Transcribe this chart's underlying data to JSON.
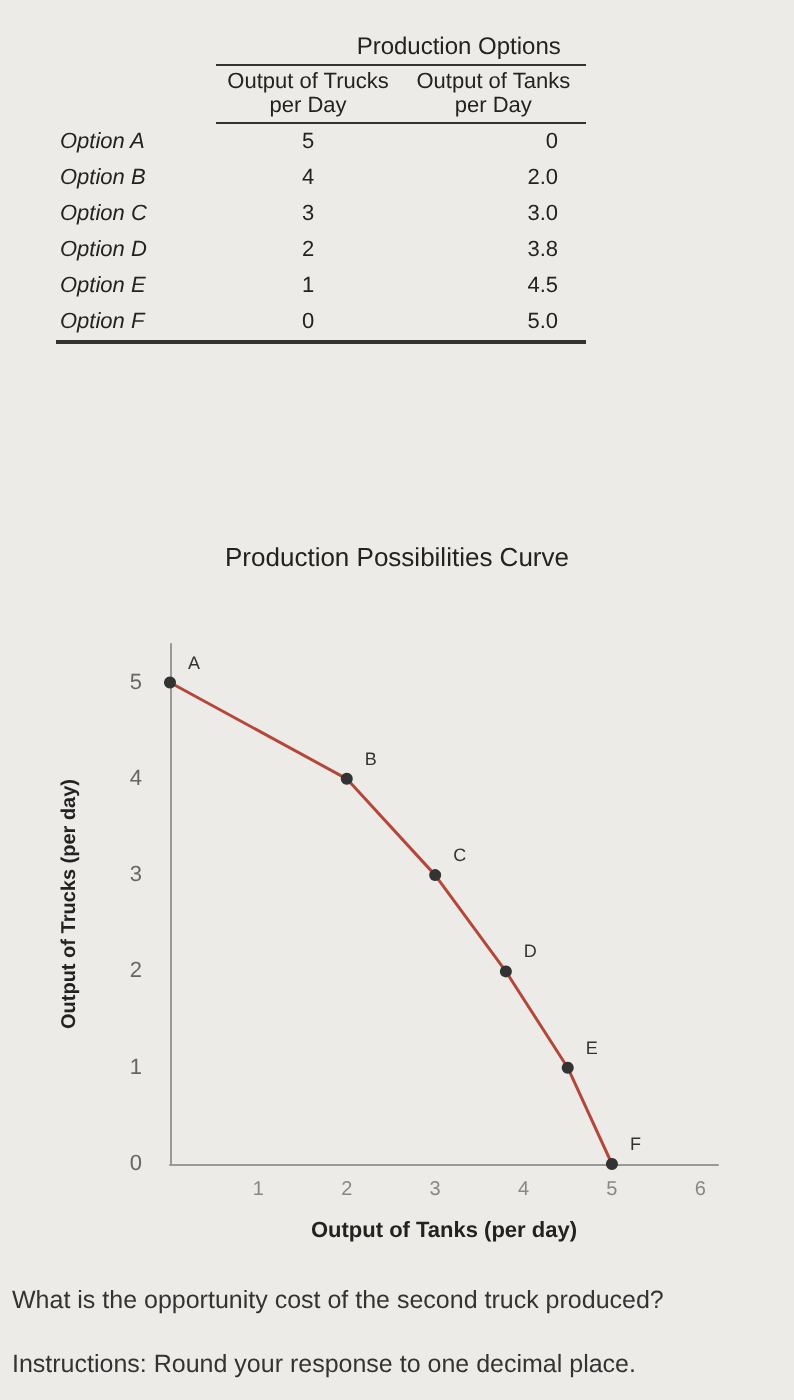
{
  "chart_data": {
    "type": "line",
    "title": "Production Possibilities Curve",
    "xlabel": "Output of Tanks (per day)",
    "ylabel": "Output of Trucks (per day)",
    "x": [
      0,
      2,
      3,
      3.8,
      4.5,
      5
    ],
    "series": [
      {
        "color": "#b5473a",
        "values": [
          5,
          4,
          3,
          2,
          1,
          0
        ]
      }
    ],
    "xlim": [
      0,
      6.2
    ],
    "xticks": [
      1,
      2,
      3,
      4,
      5,
      6
    ],
    "ylim": [
      0,
      5.4
    ],
    "yticks": [
      0,
      1,
      2,
      3,
      4,
      5
    ],
    "marker": "circle",
    "line_style": "solid",
    "grid": false,
    "annotations": [
      "Production Options",
      "Output of Trucks per Day",
      "Output of Tanks per Day",
      "Option A",
      "5",
      "0",
      "Option B",
      "4",
      "2.0",
      "Option C",
      "3",
      "3.0",
      "Option D",
      "2",
      "3.8",
      "Option E",
      "1",
      "4.5",
      "Option F",
      "0",
      "5.0",
      {
        "text": "A",
        "x": 0,
        "y": 5
      },
      {
        "text": "B",
        "x": 2,
        "y": 4
      },
      {
        "text": "C",
        "x": 3,
        "y": 3
      },
      {
        "text": "D",
        "x": 3.8,
        "y": 2
      },
      {
        "text": "E",
        "x": 4.5,
        "y": 1
      },
      {
        "text": "F",
        "x": 5,
        "y": 0
      },
      "What is the opportunity cost of the second truck produced?",
      "Instructions: Round your response to one decimal place."
    ]
  }
}
